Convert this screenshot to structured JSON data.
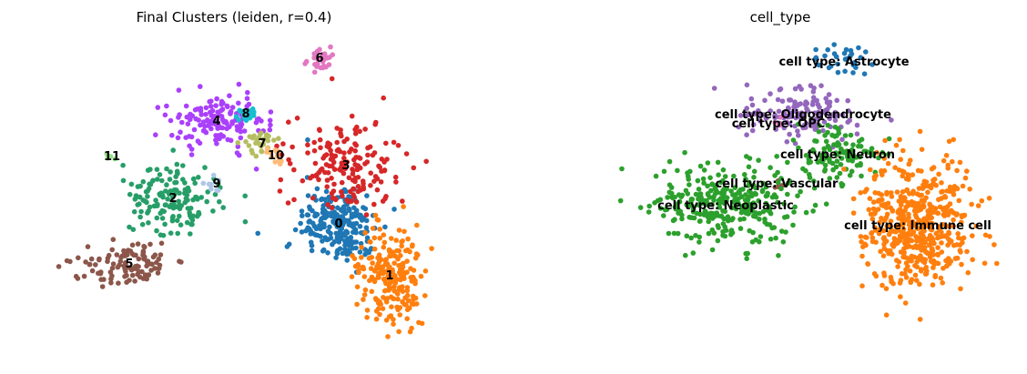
{
  "chart_data": [
    {
      "type": "scatter",
      "title": "Final Clusters (leiden, r=0.4)",
      "xlabel": "",
      "ylabel": "",
      "axes": "off",
      "grid": false,
      "legend": "on data",
      "clusters": [
        {
          "label": "0",
          "color": "#1f77b4",
          "center": [
            372,
            246
          ],
          "spread": [
            40,
            40
          ],
          "n": 230
        },
        {
          "label": "1",
          "color": "#ff7f0e",
          "center": [
            428,
            303
          ],
          "spread": [
            30,
            48
          ],
          "n": 220
        },
        {
          "label": "2",
          "color": "#279e68",
          "center": [
            190,
            218
          ],
          "spread": [
            48,
            35
          ],
          "n": 150
        },
        {
          "label": "3",
          "color": "#d62728",
          "center": [
            380,
            182
          ],
          "spread": [
            55,
            45
          ],
          "n": 170
        },
        {
          "label": "4",
          "color": "#aa40fc",
          "center": [
            238,
            133
          ],
          "spread": [
            48,
            28
          ],
          "n": 140
        },
        {
          "label": "5",
          "color": "#8c564b",
          "center": [
            142,
            290
          ],
          "spread": [
            45,
            22
          ],
          "n": 110
        },
        {
          "label": "6",
          "color": "#e377c2",
          "center": [
            351,
            64
          ],
          "spread": [
            20,
            14
          ],
          "n": 30
        },
        {
          "label": "7",
          "color": "#b5bd61",
          "center": [
            288,
            158
          ],
          "spread": [
            20,
            12
          ],
          "n": 30
        },
        {
          "label": "8",
          "color": "#17becf",
          "center": [
            270,
            125
          ],
          "spread": [
            12,
            8
          ],
          "n": 20
        },
        {
          "label": "9",
          "color": "#aec7e8",
          "center": [
            238,
            202
          ],
          "spread": [
            10,
            8
          ],
          "n": 8
        },
        {
          "label": "10",
          "color": "#ffbb78",
          "center": [
            303,
            171
          ],
          "spread": [
            12,
            10
          ],
          "n": 12
        },
        {
          "label": "11",
          "color": "#98df8a",
          "center": [
            123,
            172
          ],
          "spread": [
            6,
            5
          ],
          "n": 4
        }
      ]
    },
    {
      "type": "scatter",
      "title": "cell_type",
      "xlabel": "",
      "ylabel": "",
      "axes": "off",
      "grid": false,
      "legend": "on data",
      "clusters": [
        {
          "label": "cell type: Astrocyte",
          "color": "#1f77b4",
          "center": [
            927,
            68
          ],
          "spread": [
            35,
            18
          ],
          "n": 30
        },
        {
          "label": "cell type: Oligodendrocyte",
          "color": "#9467bd",
          "center": [
            882,
            126
          ],
          "spread": [
            55,
            25
          ],
          "n": 140
        },
        {
          "label": "cell type: OPC",
          "color": "#e377c2",
          "center": [
            855,
            136
          ],
          "spread": [
            6,
            5
          ],
          "n": 4
        },
        {
          "label": "cell type: Neuron",
          "color": "#2ca02c",
          "center": [
            920,
            170
          ],
          "spread": [
            45,
            25
          ],
          "n": 120
        },
        {
          "label": "cell type: Vascular",
          "color": "#8c564b",
          "center": [
            853,
            202
          ],
          "spread": [
            6,
            5
          ],
          "n": 4
        },
        {
          "label": "cell type: Neoplastic",
          "color": "#2ca02c",
          "center": [
            797,
            226
          ],
          "spread": [
            70,
            40
          ],
          "n": 320
        },
        {
          "label": "cell type: Immune cell",
          "color": "#ff7f0e",
          "center": [
            1008,
            248
          ],
          "spread": [
            55,
            65
          ],
          "n": 520
        }
      ]
    }
  ]
}
